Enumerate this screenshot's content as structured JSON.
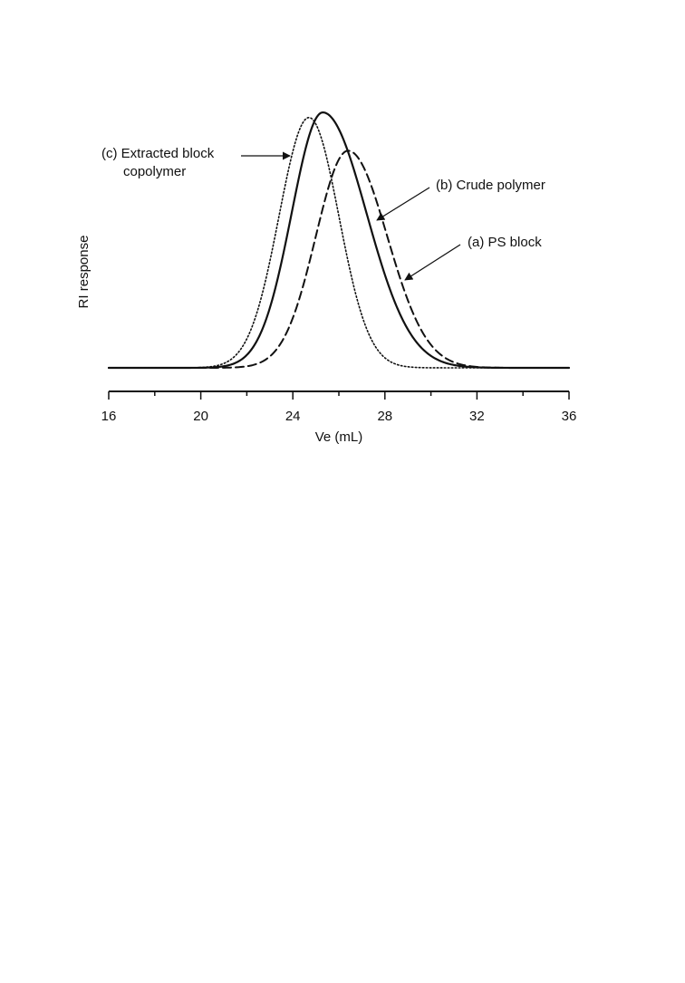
{
  "chart_data": {
    "type": "line",
    "title": "",
    "xlabel": "Ve (mL)",
    "ylabel": "RI response",
    "xlim": [
      16,
      36
    ],
    "ylim": [
      0,
      1.05
    ],
    "x_ticks": [
      "16",
      "20",
      "24",
      "28",
      "32",
      "36"
    ],
    "grid": false,
    "series": [
      {
        "name": "(a) PS block",
        "line_style": "dashed",
        "color": "#111111",
        "peak_x": 26.4,
        "peak_y": 0.85,
        "sigma_left": 1.4,
        "sigma_right": 1.7
      },
      {
        "name": "(b) Crude polymer",
        "line_style": "solid",
        "color": "#111111",
        "peak_x": 25.3,
        "peak_y": 1.0,
        "sigma_left": 1.35,
        "sigma_right": 1.9
      },
      {
        "name": "(c) Extracted block copolymer",
        "line_style": "dotted",
        "color": "#111111",
        "peak_x": 24.7,
        "peak_y": 0.98,
        "sigma_left": 1.3,
        "sigma_right": 1.3
      }
    ],
    "annotations": {
      "c_line1": "(c) Extracted block",
      "c_line2": "copolymer",
      "b": "(b) Crude polymer",
      "a": "(a) PS block"
    }
  }
}
